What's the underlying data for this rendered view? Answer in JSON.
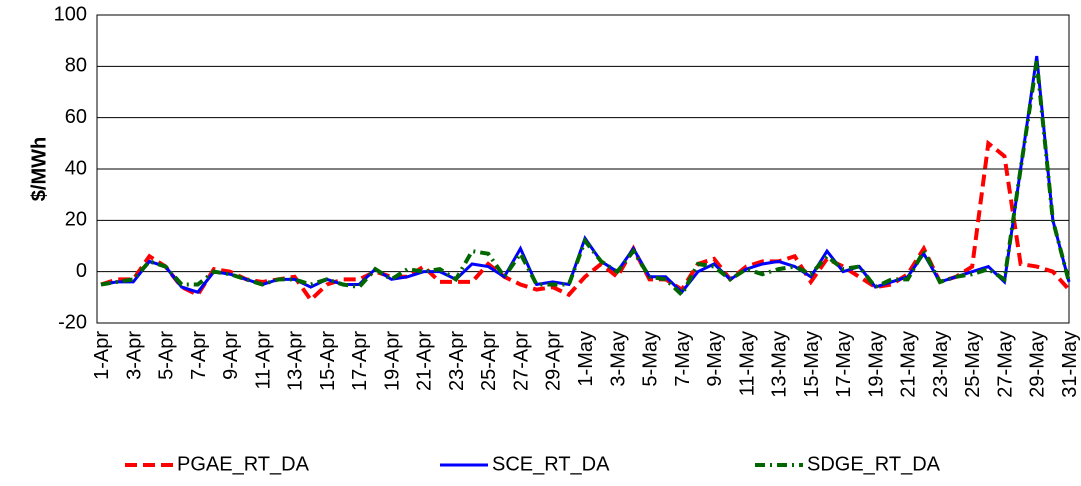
{
  "chart_data": {
    "type": "line",
    "y_label": "$/MWh",
    "categories": [
      "1-Apr",
      null,
      "3-Apr",
      null,
      "5-Apr",
      null,
      "7-Apr",
      null,
      "9-Apr",
      null,
      "11-Apr",
      null,
      "13-Apr",
      null,
      "15-Apr",
      null,
      "17-Apr",
      null,
      "19-Apr",
      null,
      "21-Apr",
      null,
      "23-Apr",
      null,
      "25-Apr",
      null,
      "27-Apr",
      null,
      "29-Apr",
      null,
      "1-May",
      null,
      "3-May",
      null,
      "5-May",
      null,
      "7-May",
      null,
      "9-May",
      null,
      "11-May",
      null,
      "13-May",
      null,
      "15-May",
      null,
      "17-May",
      null,
      "19-May",
      null,
      "21-May",
      null,
      "23-May",
      null,
      "25-May",
      null,
      "27-May",
      null,
      "29-May",
      null,
      "31-May"
    ],
    "series": [
      {
        "name": "PGAE_RT_DA",
        "color": "#ff0000",
        "style": "dashed",
        "values": [
          -5,
          -3,
          -3,
          6,
          2,
          -6,
          -9,
          1,
          0,
          -3,
          -4,
          -3,
          -2,
          -11,
          -5,
          -3,
          -3,
          0,
          -2,
          -2,
          2,
          -4,
          -4,
          -4,
          3,
          -2,
          -5,
          -7,
          -6,
          -9,
          -2,
          3,
          -2,
          9,
          -3,
          -3,
          -7,
          3,
          5,
          -3,
          2,
          4,
          4,
          6,
          -4,
          5,
          2,
          -2,
          -6,
          -5,
          -1,
          9,
          -4,
          -2,
          2,
          50,
          45,
          3,
          2,
          0,
          -7
        ]
      },
      {
        "name": "SCE_RT_DA",
        "color": "#0000ff",
        "style": "solid",
        "values": [
          -5,
          -4,
          -4,
          4,
          2,
          -6,
          -8,
          0,
          -1,
          -3,
          -5,
          -3,
          -3,
          -6,
          -3,
          -5,
          -5,
          1,
          -3,
          -2,
          0,
          0,
          -3,
          3,
          2,
          -2,
          9,
          -5,
          -4,
          -5,
          13,
          4,
          0,
          9,
          -2,
          -2,
          -8,
          0,
          3,
          -3,
          1,
          3,
          4,
          2,
          -2,
          8,
          0,
          2,
          -6,
          -4,
          -2,
          7,
          -4,
          -2,
          0,
          2,
          -4,
          40,
          84,
          20,
          -4
        ]
      },
      {
        "name": "SDGE_RT_DA",
        "color": "#006600",
        "style": "dashdot",
        "values": [
          -5,
          -4,
          -3,
          4,
          2,
          -5,
          -5,
          0,
          -1,
          -3,
          -5,
          -3,
          -3,
          -5,
          -3,
          -5,
          -6,
          1,
          -3,
          1,
          0,
          1,
          -3,
          8,
          7,
          -2,
          7,
          -5,
          -5,
          -5,
          12,
          4,
          0,
          8,
          -2,
          -3,
          -9,
          3,
          2,
          -3,
          1,
          -1,
          1,
          2,
          -1,
          6,
          1,
          2,
          -6,
          -3,
          -3,
          8,
          -4,
          -2,
          -1,
          1,
          -3,
          40,
          82,
          20,
          -4
        ]
      }
    ],
    "ylim": [
      -20,
      100
    ],
    "yticks": [
      -20,
      0,
      20,
      40,
      60,
      80,
      100
    ],
    "grid": true
  }
}
